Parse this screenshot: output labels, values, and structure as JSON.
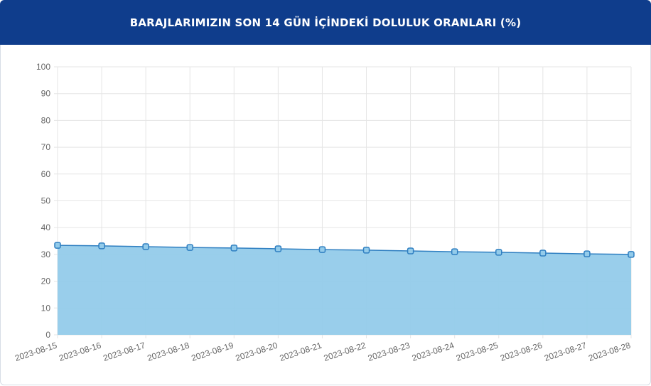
{
  "chart_data": {
    "type": "line",
    "title": "BARAJLARIMIZIN SON 14 GÜN İÇİNDEKİ DOLULUK ORANLARI (%)",
    "categories": [
      "2023-08-15",
      "2023-08-16",
      "2023-08-17",
      "2023-08-18",
      "2023-08-19",
      "2023-08-20",
      "2023-08-21",
      "2023-08-22",
      "2023-08-23",
      "2023-08-24",
      "2023-08-25",
      "2023-08-26",
      "2023-08-27",
      "2023-08-28"
    ],
    "values": [
      33.4,
      33.2,
      32.9,
      32.6,
      32.4,
      32.1,
      31.8,
      31.6,
      31.3,
      31.0,
      30.8,
      30.5,
      30.2,
      30.0
    ],
    "color": "#2f7fc1",
    "fill_color": "#93cbea",
    "ylim": [
      0,
      100
    ],
    "yticks": [
      0,
      10,
      20,
      30,
      40,
      50,
      60,
      70,
      80,
      90,
      100
    ],
    "grid": true
  }
}
